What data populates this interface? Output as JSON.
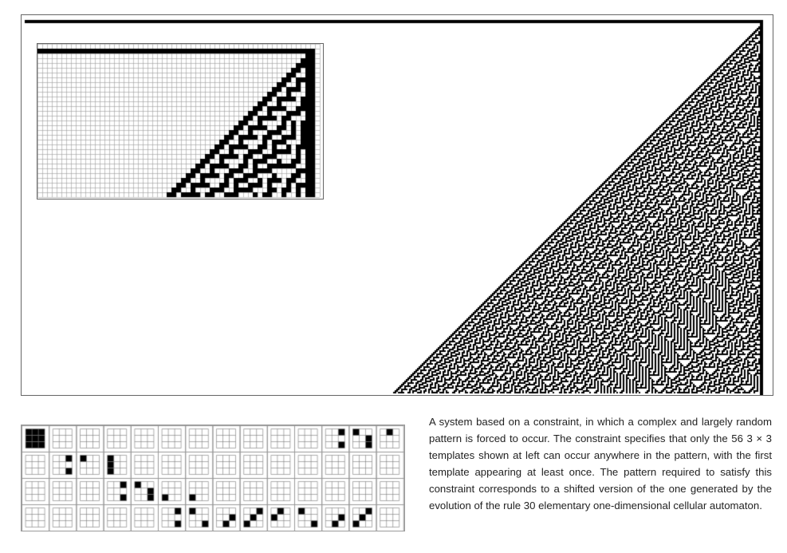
{
  "figure": {
    "main_pattern": {
      "rule": 30,
      "description_shown": "large triangular rule 30 pattern, forced by constraint"
    },
    "inset_pattern": {
      "rule": 30,
      "grid_visible": true
    },
    "templates": {
      "count": 56,
      "size": "3 × 3",
      "rows": 4,
      "columns": 14
    }
  },
  "caption": {
    "text": "A system based on a constraint, in which a complex and largely random pattern is forced to occur. The constraint specifies that only the 56 3 × 3 templates shown at left can occur anywhere in the pattern, with the first template appearing at least once. The pattern required to satisfy this constraint corresponds to a shifted version of the one generated by the evolution of the rule 30 elementary one-dimensional cellular automaton."
  }
}
